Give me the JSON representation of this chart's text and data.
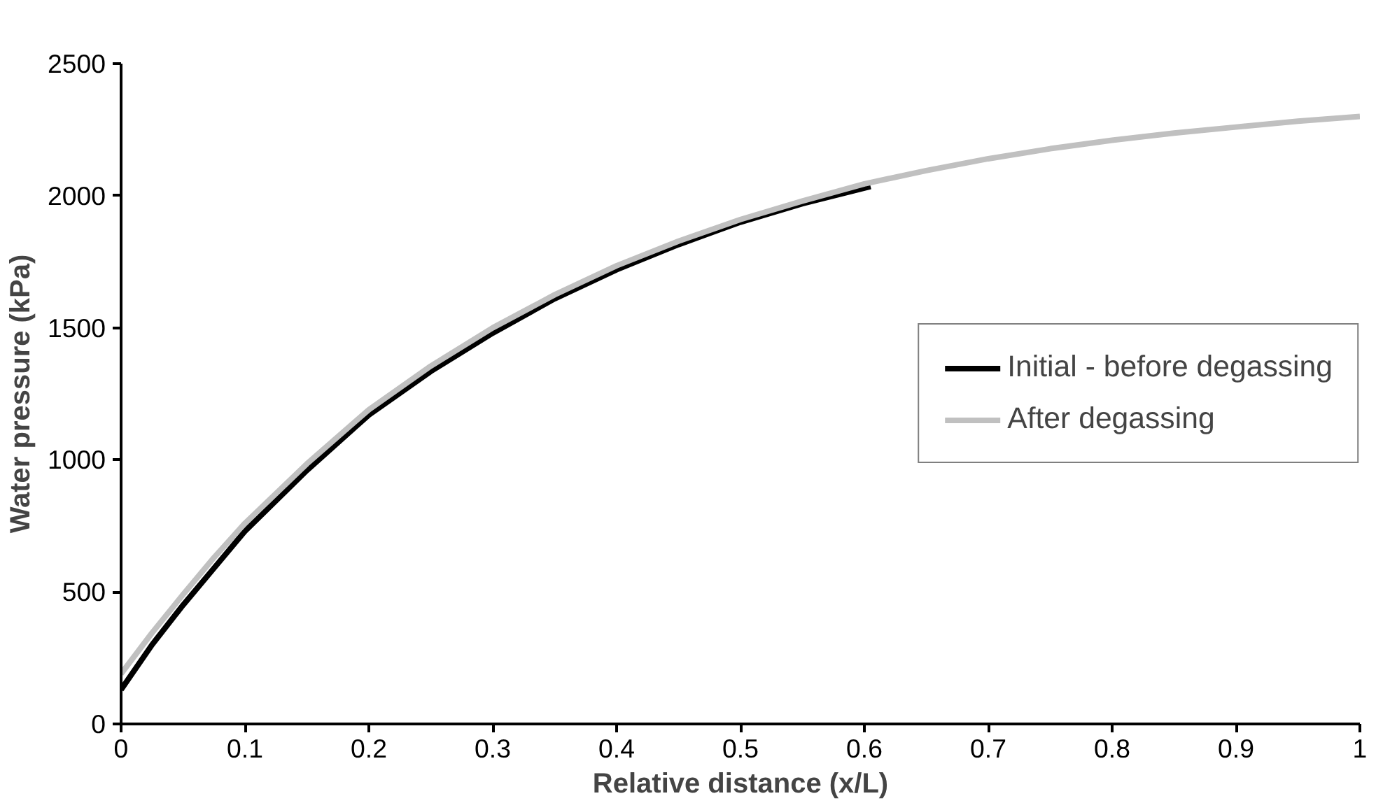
{
  "chart_data": {
    "type": "line",
    "xlabel": "Relative distance (x/L)",
    "ylabel": "Water pressure (kPa)",
    "xlim": [
      0,
      1
    ],
    "xticks": [
      0,
      0.1,
      0.2,
      0.3,
      0.4,
      0.5,
      0.6,
      0.7,
      0.8,
      0.9,
      1
    ],
    "ylim": [
      0,
      2500
    ],
    "yticks": [
      0,
      500,
      1000,
      1500,
      2000,
      2500
    ],
    "grid": false,
    "legend": "right",
    "marker": "none",
    "line_style": "solid",
    "series": [
      {
        "name": "Initial - before degassing",
        "color": "#000000",
        "x": [
          0,
          0.025,
          0.05,
          0.075,
          0.1,
          0.15,
          0.2,
          0.25,
          0.3,
          0.35,
          0.4,
          0.45,
          0.5,
          0.55,
          0.605
        ],
        "values": [
          130,
          300,
          450,
          590,
          730,
          960,
          1170,
          1335,
          1480,
          1610,
          1720,
          1815,
          1900,
          1970,
          2035
        ]
      },
      {
        "name": "After degassing",
        "color": "#c0c0c0",
        "x": [
          0,
          0.025,
          0.05,
          0.075,
          0.1,
          0.15,
          0.2,
          0.25,
          0.3,
          0.35,
          0.4,
          0.45,
          0.5,
          0.55,
          0.6,
          0.65,
          0.7,
          0.75,
          0.8,
          0.85,
          0.9,
          0.95,
          1
        ],
        "values": [
          190,
          345,
          490,
          630,
          760,
          985,
          1190,
          1355,
          1500,
          1625,
          1735,
          1828,
          1910,
          1980,
          2045,
          2095,
          2140,
          2178,
          2210,
          2237,
          2260,
          2282,
          2300
        ]
      }
    ]
  }
}
